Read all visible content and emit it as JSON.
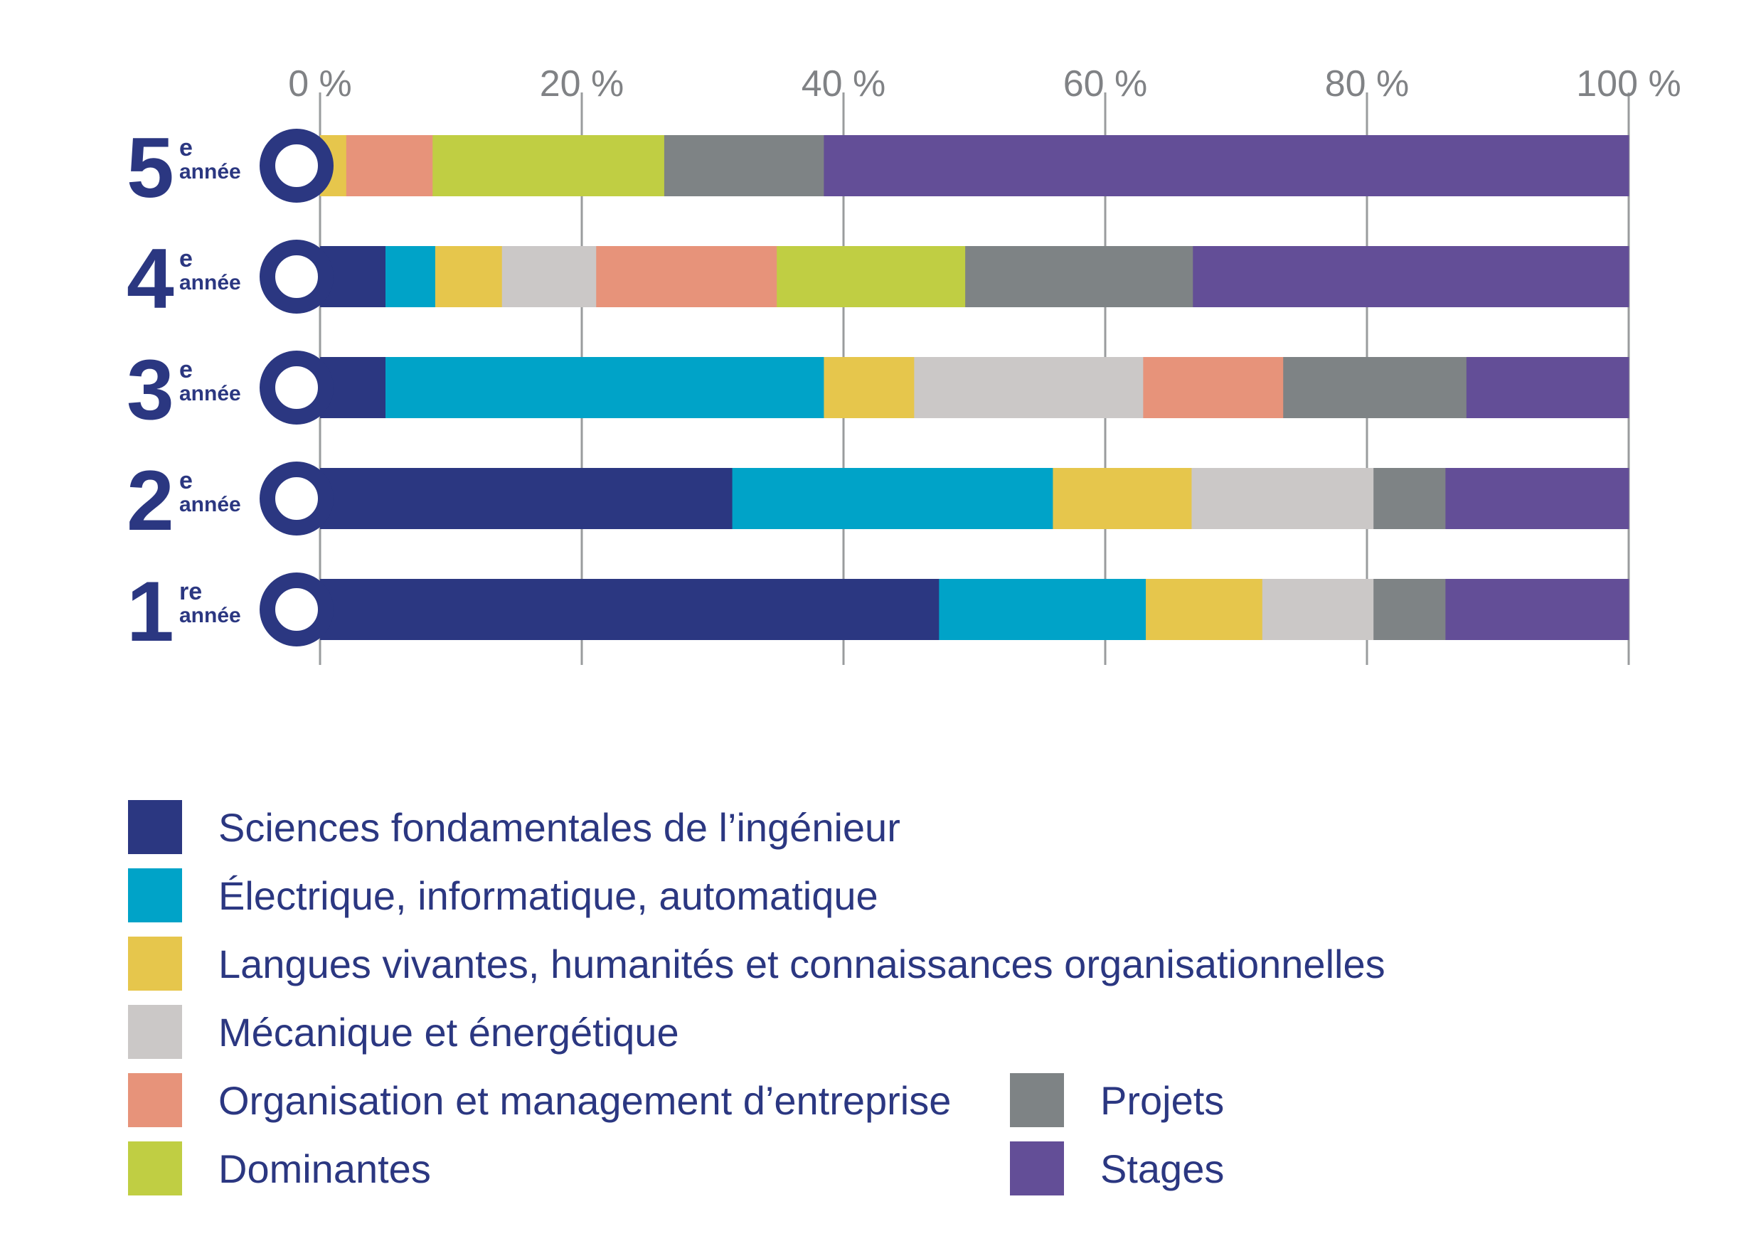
{
  "chart_data": {
    "type": "bar",
    "orientation": "horizontal",
    "stacked": true,
    "xlim": [
      0,
      100
    ],
    "ticks": [
      {
        "value": 0,
        "label": "0 %"
      },
      {
        "value": 20,
        "label": "20 %"
      },
      {
        "value": 40,
        "label": "40 %"
      },
      {
        "value": 60,
        "label": "60 %"
      },
      {
        "value": 80,
        "label": "80 %"
      },
      {
        "value": 100,
        "label": "100 %"
      }
    ],
    "categories": [
      {
        "number": "5",
        "suffix": "e",
        "word": "année"
      },
      {
        "number": "4",
        "suffix": "e",
        "word": "année"
      },
      {
        "number": "3",
        "suffix": "e",
        "word": "année"
      },
      {
        "number": "2",
        "suffix": "e",
        "word": "année"
      },
      {
        "number": "1",
        "suffix": "re",
        "word": "année"
      }
    ],
    "series": [
      {
        "name": "Sciences fondamentales de l’ingénieur",
        "color": "#2b3781",
        "values": [
          0,
          5,
          5,
          31.5,
          47.3
        ]
      },
      {
        "name": "Électrique, informatique, automatique",
        "color": "#00a3c8",
        "values": [
          0,
          3.8,
          33.5,
          24.5,
          15.8
        ]
      },
      {
        "name": "Langues vivantes, humanités et connaissances organisationnelles",
        "color": "#e6c64c",
        "values": [
          2,
          5.1,
          6.9,
          10.6,
          8.9
        ]
      },
      {
        "name": "Mécanique et énergétique",
        "color": "#cbc8c7",
        "values": [
          0,
          7.2,
          17.5,
          13.9,
          8.5
        ]
      },
      {
        "name": "Organisation et management d’entreprise",
        "color": "#e7937a",
        "values": [
          6.6,
          13.8,
          10.7,
          0,
          0
        ]
      },
      {
        "name": "Dominantes",
        "color": "#c0ce43",
        "values": [
          17.7,
          14.4,
          0,
          0,
          0
        ]
      },
      {
        "name": "Projets",
        "color": "#7e8385",
        "values": [
          12.2,
          17.4,
          14,
          5.5,
          5.5
        ]
      },
      {
        "name": "Stages",
        "color": "#634e97",
        "values": [
          61.5,
          33.3,
          12.4,
          14,
          14
        ]
      }
    ],
    "legend": [
      {
        "label": "Sciences fondamentales de l’ingénieur",
        "color": "#2b3781"
      },
      {
        "label": "Électrique, informatique, automatique",
        "color": "#00a3c8"
      },
      {
        "label": "Langues vivantes, humanités et connaissances organisationnelles",
        "color": "#e6c64c"
      },
      {
        "label": "Mécanique et énergétique",
        "color": "#cbc8c7"
      },
      {
        "label": "Organisation et management d’entreprise",
        "color": "#e7937a"
      },
      {
        "label": "Dominantes",
        "color": "#c0ce43"
      },
      {
        "label": "Projets",
        "color": "#7e8385"
      },
      {
        "label": "Stages",
        "color": "#634e97"
      }
    ],
    "legend_placement": "bottom",
    "grid": true
  },
  "colors": {
    "accent": "#2b3781",
    "axis_text": "#808285",
    "gridline": "#9a9c9e"
  }
}
